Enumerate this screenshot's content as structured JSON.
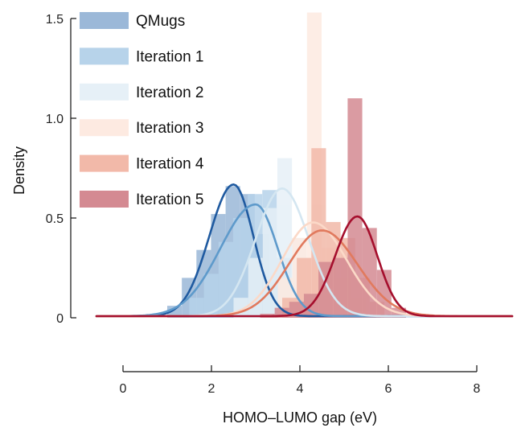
{
  "chart_data": {
    "type": "bar",
    "subtype": "histogram-with-density-curves",
    "title": "",
    "xlabel": "HOMO–LUMO gap (eV)",
    "ylabel": "Density",
    "xlim": [
      -0.7,
      8.8
    ],
    "ylim": [
      0,
      1.5
    ],
    "x_ticks": [
      0,
      2,
      4,
      6,
      8
    ],
    "x_tick_labels": [
      "0",
      "2",
      "4",
      "6",
      "8"
    ],
    "y_ticks": [
      0,
      0.5,
      1.0,
      1.5
    ],
    "y_tick_labels": [
      "0",
      "0.5",
      "1.0",
      "1.5"
    ],
    "grid": false,
    "legend_position": "top-left",
    "bin_width": 0.33,
    "series": [
      {
        "name": "QMugs",
        "bar_color": "#9bb8d8",
        "line_color": "#1f5aa0",
        "hist": {
          "bin_starts": [
            1.0,
            1.33,
            1.66,
            1.99,
            2.32,
            2.65,
            2.98,
            3.31
          ],
          "values": [
            0.06,
            0.2,
            0.34,
            0.52,
            0.66,
            0.62,
            0.42,
            0.18
          ]
        },
        "kde": {
          "peak_x": 2.5,
          "peak_y": 0.66,
          "sigma_left": 0.55,
          "sigma_right": 0.45
        }
      },
      {
        "name": "Iteration 1",
        "bar_color": "#b7d3ea",
        "line_color": "#5e9acb",
        "hist": {
          "bin_starts": [
            1.5,
            1.83,
            2.16,
            2.49,
            2.82,
            3.15,
            3.48,
            3.81
          ],
          "values": [
            0.1,
            0.22,
            0.38,
            0.5,
            0.62,
            0.64,
            0.3,
            0.1
          ]
        },
        "kde": {
          "peak_x": 3.0,
          "peak_y": 0.56,
          "sigma_left": 0.8,
          "sigma_right": 0.5
        }
      },
      {
        "name": "Iteration 2",
        "bar_color": "#e6f0f7",
        "line_color": "#d4e6f1",
        "hist": {
          "bin_starts": [
            2.5,
            2.83,
            3.16,
            3.49,
            3.82,
            4.15
          ],
          "values": [
            0.1,
            0.3,
            0.55,
            0.8,
            0.4,
            0.15
          ]
        },
        "kde": {
          "peak_x": 3.6,
          "peak_y": 0.64,
          "sigma_left": 0.6,
          "sigma_right": 0.6
        }
      },
      {
        "name": "Iteration 3",
        "bar_color": "#fdeae1",
        "line_color": "#fbd9c8",
        "hist": {
          "bin_starts": [
            3.5,
            3.83,
            4.16,
            4.49,
            4.82,
            5.15
          ],
          "values": [
            0.2,
            0.4,
            1.53,
            0.35,
            0.2,
            0.1
          ]
        },
        "kde": {
          "peak_x": 4.3,
          "peak_y": 0.47,
          "sigma_left": 0.7,
          "sigma_right": 0.75
        }
      },
      {
        "name": "Iteration 4",
        "bar_color": "#f2b9a9",
        "line_color": "#e17a5e",
        "hist": {
          "bin_starts": [
            3.6,
            3.93,
            4.26,
            4.59,
            4.92,
            5.25,
            5.58
          ],
          "values": [
            0.1,
            0.3,
            0.85,
            0.48,
            0.4,
            0.2,
            0.08
          ]
        },
        "kde": {
          "peak_x": 4.5,
          "peak_y": 0.43,
          "sigma_left": 0.75,
          "sigma_right": 0.8
        }
      },
      {
        "name": "Iteration 5",
        "bar_color": "#d48a92",
        "line_color": "#a50f2d",
        "hist": {
          "bin_starts": [
            3.1,
            3.43,
            3.76,
            4.09,
            4.42,
            4.75,
            5.08,
            5.41,
            5.74,
            6.07
          ],
          "values": [
            0.02,
            0.05,
            0.08,
            0.12,
            0.28,
            0.3,
            1.1,
            0.45,
            0.24,
            0.05
          ]
        },
        "kde": {
          "peak_x": 5.3,
          "peak_y": 0.5,
          "sigma_left": 0.5,
          "sigma_right": 0.45
        }
      }
    ]
  }
}
